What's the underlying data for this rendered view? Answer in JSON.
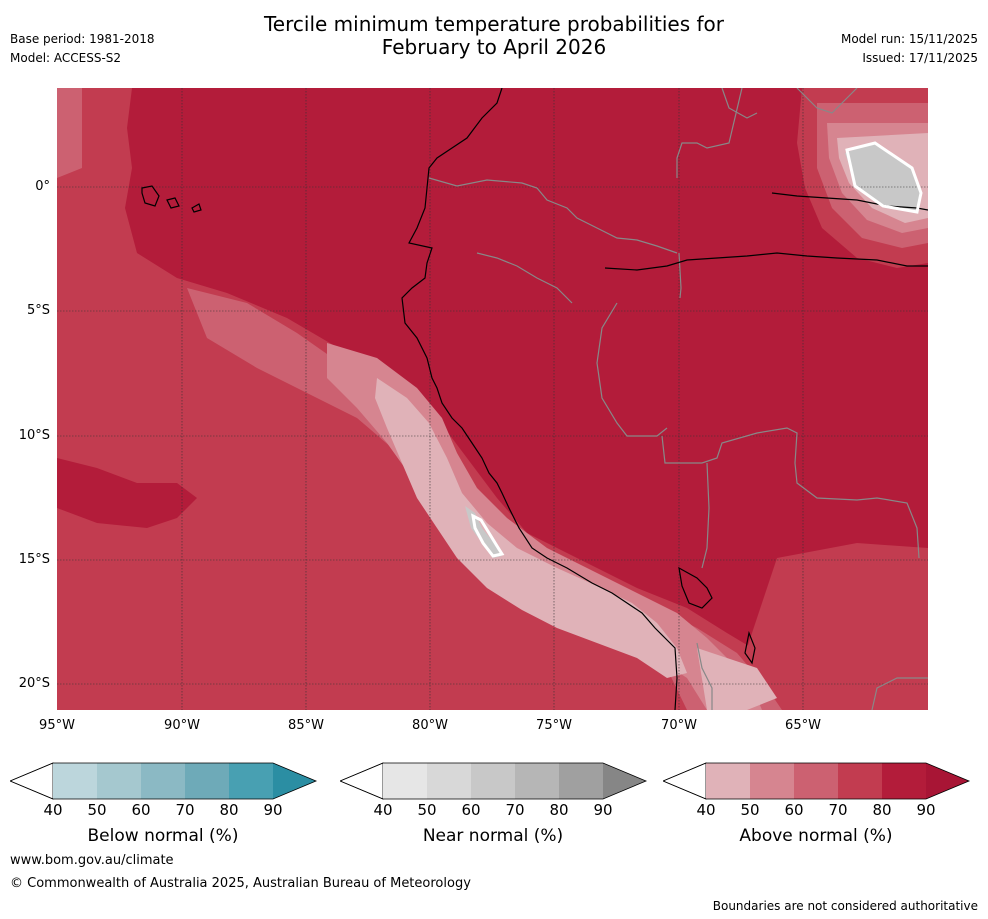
{
  "header": {
    "title_line1": "Tercile minimum temperature probabilities for",
    "title_line2": "February to April 2026",
    "base_period": "Base period: 1981-2018",
    "model": "Model: ACCESS-S2",
    "model_run": "Model run: 15/11/2025",
    "issued": "Issued: 17/11/2025"
  },
  "map": {
    "lat_ticks": [
      "0°",
      "5°S",
      "10°S",
      "15°S",
      "20°S"
    ],
    "lon_ticks": [
      "95°W",
      "90°W",
      "85°W",
      "80°W",
      "75°W",
      "70°W",
      "65°W"
    ],
    "colors": {
      "above_90": "#b31c3a",
      "above_80": "#c23c50",
      "above_70": "#cc6171",
      "above_60": "#d68590",
      "above_50": "#e0b2b8",
      "near_60": "#c8c8c8",
      "coast": "#000000",
      "border": "#888888",
      "grid": "#333333"
    }
  },
  "legends": [
    {
      "name": "below",
      "label": "Below normal (%)",
      "ticks": [
        "40",
        "50",
        "60",
        "70",
        "80",
        "90"
      ],
      "colors": [
        "#bcd6dc",
        "#a5c8cf",
        "#8bb9c4",
        "#6eaab8",
        "#48a0b2",
        "#2b8ea3"
      ]
    },
    {
      "name": "near",
      "label": "Near normal (%)",
      "ticks": [
        "40",
        "50",
        "60",
        "70",
        "80",
        "90"
      ],
      "colors": [
        "#e6e6e6",
        "#d8d8d8",
        "#c8c8c8",
        "#b6b6b6",
        "#a0a0a0",
        "#868686"
      ]
    },
    {
      "name": "above",
      "label": "Above normal (%)",
      "ticks": [
        "40",
        "50",
        "60",
        "70",
        "80",
        "90"
      ],
      "colors": [
        "#e0b2b8",
        "#d68590",
        "#cc6171",
        "#c23c50",
        "#b31c3a",
        "#a81535"
      ]
    }
  ],
  "footer": {
    "url": "www.bom.gov.au/climate",
    "copyright": "© Commonwealth of Australia 2025, Australian Bureau of Meteorology",
    "disclaimer": "Boundaries are not considered authoritative"
  }
}
